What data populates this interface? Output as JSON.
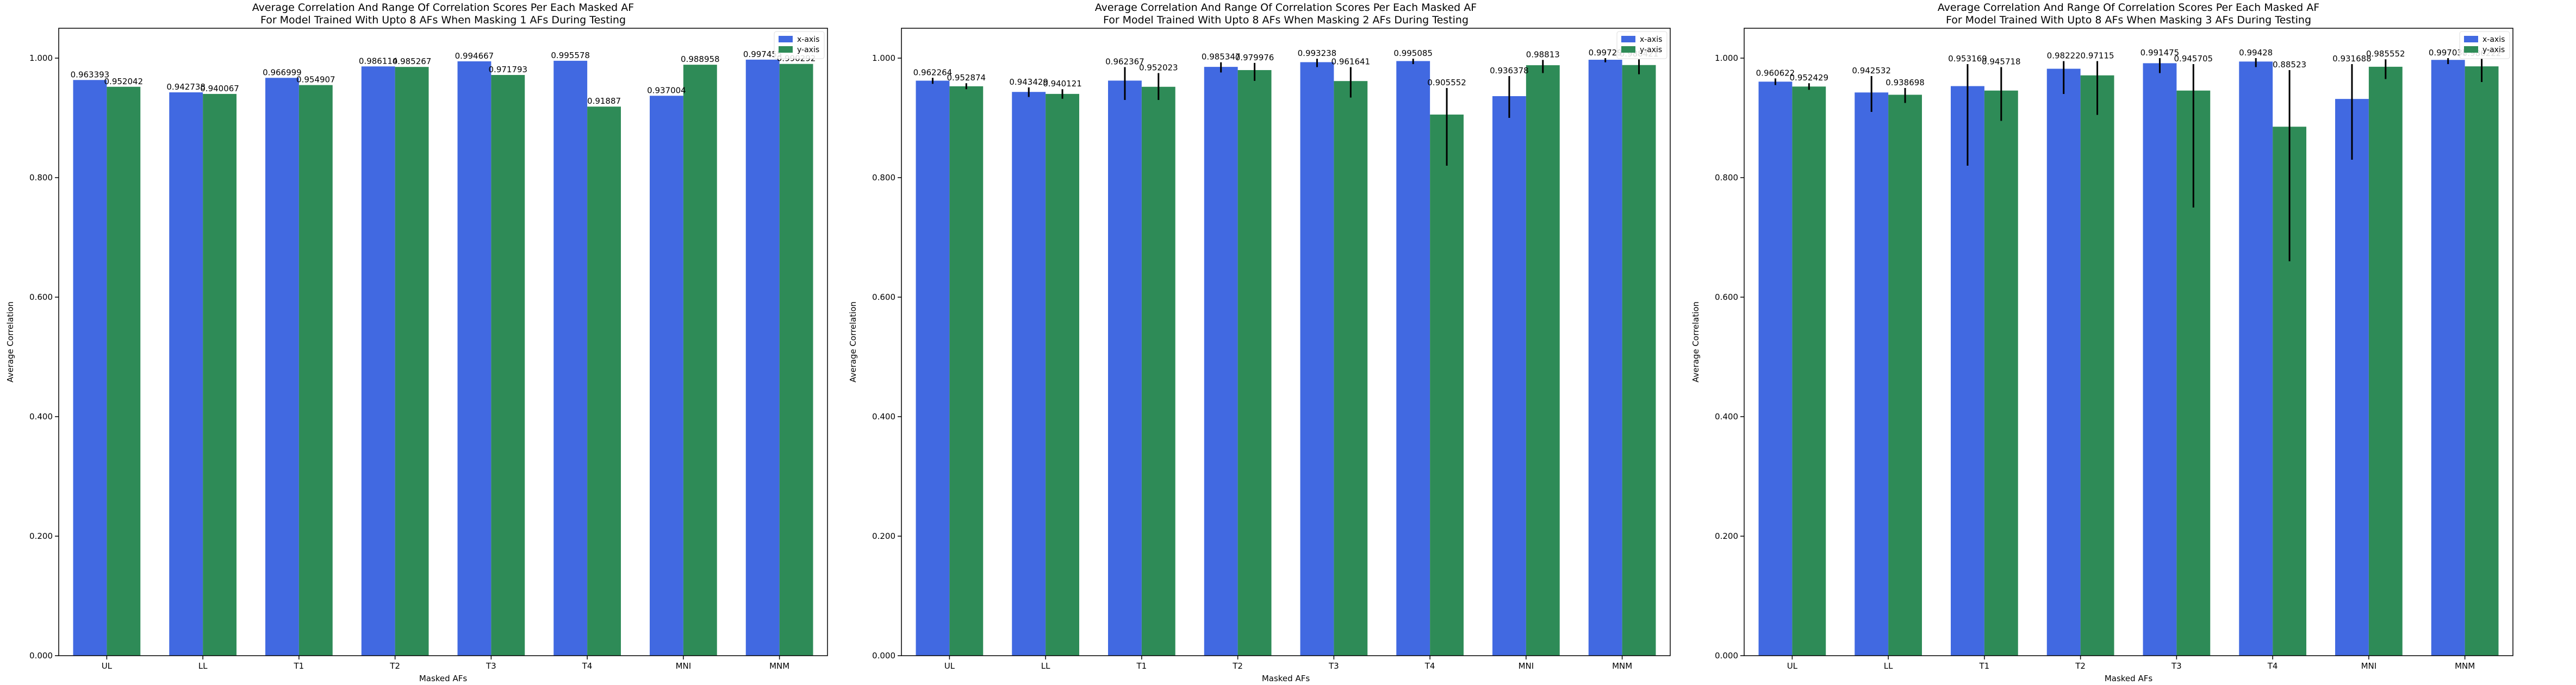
{
  "chart_data": [
    {
      "type": "bar",
      "title": "Average Correlation And Range Of Correlation Scores Per Each Masked AF",
      "subtitle": "For Model Trained With Upto 8 AFs When Masking 1 AFs During Testing",
      "xlabel": "Masked AFs",
      "ylabel": "Average Correlation",
      "ylim": [
        0,
        1.05
      ],
      "yticks": [
        "0.000",
        "0.200",
        "0.400",
        "0.600",
        "0.800",
        "1.000"
      ],
      "categories": [
        "UL",
        "LL",
        "T1",
        "T2",
        "T3",
        "T4",
        "MNI",
        "MNM"
      ],
      "legend_position": "top-right",
      "grid": false,
      "series": [
        {
          "name": "x-axis",
          "color": "#4169e1",
          "values": [
            0.963393,
            0.942738,
            0.966999,
            0.986114,
            0.994667,
            0.995578,
            0.937004,
            0.997455
          ],
          "value_labels": [
            "0.963393",
            "0.942738",
            "0.966999",
            "0.986114",
            "0.994667",
            "0.995578",
            "0.937004",
            "0.997455"
          ],
          "err_low": [
            0.963393,
            0.942738,
            0.966999,
            0.986114,
            0.994667,
            0.995578,
            0.937004,
            0.997455
          ],
          "err_high": [
            0.963393,
            0.942738,
            0.966999,
            0.986114,
            0.994667,
            0.995578,
            0.937004,
            0.997455
          ]
        },
        {
          "name": "y-axis",
          "color": "#2e8b57",
          "values": [
            0.952042,
            0.940067,
            0.954907,
            0.985267,
            0.971793,
            0.91887,
            0.988958,
            0.990292
          ],
          "value_labels": [
            "0.952042",
            "0.940067",
            "0.954907",
            "0.985267",
            "0.971793",
            "0.91887",
            "0.988958",
            "0.990292"
          ],
          "err_low": [
            0.952042,
            0.940067,
            0.954907,
            0.985267,
            0.971793,
            0.91887,
            0.988958,
            0.990292
          ],
          "err_high": [
            0.952042,
            0.940067,
            0.954907,
            0.985267,
            0.971793,
            0.91887,
            0.988958,
            0.990292
          ]
        }
      ]
    },
    {
      "type": "bar",
      "title": "Average Correlation And Range Of Correlation Scores Per Each Masked AF",
      "subtitle": "For Model Trained With Upto 8 AFs When Masking 2 AFs During Testing",
      "xlabel": "Masked AFs",
      "ylabel": "Average Correlation",
      "ylim": [
        0,
        1.05
      ],
      "yticks": [
        "0.000",
        "0.200",
        "0.400",
        "0.600",
        "0.800",
        "1.000"
      ],
      "categories": [
        "UL",
        "LL",
        "T1",
        "T2",
        "T3",
        "T4",
        "MNI",
        "MNM"
      ],
      "legend_position": "top-right",
      "grid": false,
      "series": [
        {
          "name": "x-axis",
          "color": "#4169e1",
          "values": [
            0.962264,
            0.943429,
            0.962367,
            0.985347,
            0.993238,
            0.995085,
            0.936378,
            0.99729
          ],
          "value_labels": [
            "0.962264",
            "0.943429",
            "0.962367",
            "0.985347",
            "0.993238",
            "0.995085",
            "0.936378",
            "0.99729"
          ],
          "err_low": [
            0.957,
            0.935,
            0.93,
            0.976,
            0.985,
            0.99,
            0.9,
            0.993
          ],
          "err_high": [
            0.967,
            0.951,
            0.985,
            0.993,
            0.999,
            0.999,
            0.97,
            1.0
          ]
        },
        {
          "name": "y-axis",
          "color": "#2e8b57",
          "values": [
            0.952874,
            0.940121,
            0.952023,
            0.979976,
            0.961641,
            0.905552,
            0.98813,
            0.988421
          ],
          "value_labels": [
            "0.952874",
            "0.940121",
            "0.952023",
            "0.979976",
            "0.961641",
            "0.905552",
            "0.98813",
            "0.988421"
          ],
          "err_low": [
            0.948,
            0.932,
            0.93,
            0.962,
            0.934,
            0.82,
            0.975,
            0.973
          ],
          "err_high": [
            0.958,
            0.948,
            0.975,
            0.992,
            0.985,
            0.95,
            0.997,
            0.998
          ]
        }
      ]
    },
    {
      "type": "bar",
      "title": "Average Correlation And Range Of Correlation Scores Per Each Masked AF",
      "subtitle": "For Model Trained With Upto 8 AFs When Masking 3 AFs During Testing",
      "xlabel": "Masked AFs",
      "ylabel": "Average Correlation",
      "ylim": [
        0,
        1.05
      ],
      "yticks": [
        "0.000",
        "0.200",
        "0.400",
        "0.600",
        "0.800",
        "1.000"
      ],
      "categories": [
        "UL",
        "LL",
        "T1",
        "T2",
        "T3",
        "T4",
        "MNI",
        "MNM"
      ],
      "legend_position": "top-right",
      "grid": false,
      "series": [
        {
          "name": "x-axis",
          "color": "#4169e1",
          "values": [
            0.960622,
            0.942532,
            0.953169,
            0.98222,
            0.991475,
            0.99428,
            0.931688,
            0.997037
          ],
          "value_labels": [
            "0.960622",
            "0.942532",
            "0.953169",
            "0.98222",
            "0.991475",
            "0.99428",
            "0.931688",
            "0.997037"
          ],
          "err_low": [
            0.955,
            0.91,
            0.82,
            0.94,
            0.975,
            0.985,
            0.83,
            0.99
          ],
          "err_high": [
            0.966,
            0.97,
            0.99,
            0.995,
            1.0,
            1.0,
            0.99,
            1.0
          ]
        },
        {
          "name": "y-axis",
          "color": "#2e8b57",
          "values": [
            0.952429,
            0.938698,
            0.945718,
            0.97115,
            0.945705,
            0.88523,
            0.985552,
            0.986222
          ],
          "value_labels": [
            "0.952429",
            "0.938698",
            "0.945718",
            "0.97115",
            "0.945705",
            "0.88523",
            "0.985552",
            "0.986222"
          ],
          "err_low": [
            0.947,
            0.925,
            0.895,
            0.905,
            0.75,
            0.66,
            0.965,
            0.96
          ],
          "err_high": [
            0.958,
            0.95,
            0.985,
            0.995,
            0.99,
            0.98,
            0.998,
            0.999
          ]
        }
      ]
    }
  ]
}
